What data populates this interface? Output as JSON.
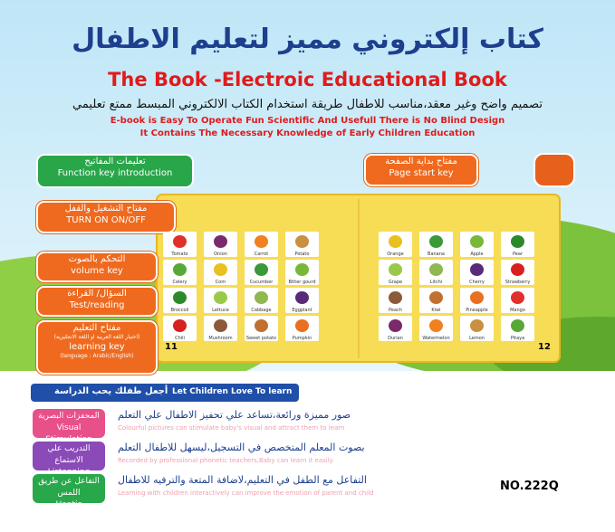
{
  "header": {
    "title_ar": "كتاب إلكتروني مميز لتعليم الاطفال",
    "title_en": "The Book -Electroic Educational Book",
    "subtitle_ar": "تصميم واضح وغير معقد،مناسب للاطفال طريقة استخدام الكتاب الالكتروني المبسط ممتع تعليمي",
    "line1": "E-book is Easy To Operate Fun Scientific And Usefull There is No Blind Design",
    "line2": "It Contains The Necessary Knowledge of Early Children Education"
  },
  "keys": {
    "function": {
      "ar": "تعليمات المفاتيح",
      "en": "Function key introduction"
    },
    "power": {
      "ar": "مفتاح التشغيل والقفل",
      "en": "TURN ON ON/OFF"
    },
    "volume": {
      "ar": "التحكم بالصوت",
      "en": "volume key"
    },
    "test": {
      "ar": "السؤال/ القراءة",
      "en": "Test/reading"
    },
    "learning": {
      "ar": "مفتاح التعليم",
      "note_ar": "(اختيار اللغة العربية او اللغة الانجليزية)",
      "en": "learning key",
      "note_en": "(language : Arabic/English)"
    },
    "page_start": {
      "ar": "مفتاح بداية الصفحة",
      "en": "Page start key"
    }
  },
  "book": {
    "left_page": "11",
    "right_page": "12",
    "left": [
      [
        "Tomato",
        "Onion",
        "Carrot",
        "Potato"
      ],
      [
        "Celery",
        "Corn",
        "Cucumber",
        "Bitter gourd"
      ],
      [
        "Broccoli",
        "Lettuce",
        "Cabbage",
        "Eggplant"
      ],
      [
        "Chili",
        "Mushroom",
        "Sweet potato",
        "Pumpkin"
      ]
    ],
    "right": [
      [
        "Orange",
        "Banana",
        "Apple",
        "Pear"
      ],
      [
        "Grape",
        "Litchi",
        "Cherry",
        "Strawberry"
      ],
      [
        "Peach",
        "Kiwi",
        "Pineapple",
        "Mango"
      ],
      [
        "Durian",
        "Watermelon",
        "Lemon",
        "Pitaya"
      ]
    ]
  },
  "slogan": {
    "ar": "أجعل طفلك يحب الدراسة",
    "en": "Let Children Love To learn"
  },
  "features": [
    {
      "ar": "المحفزات البصرية",
      "en": "Visual Stimulation",
      "desc_ar": "صور مميزة ورائعة،تساعد علي تحفيز الاطفال علي التعلم",
      "desc_en": "Colourful pictures can stimulate baby's visual and attract them to learn"
    },
    {
      "ar": "التدريب علي الاستماع",
      "en": "Listenning Training",
      "desc_ar": "بصوت المعلم المتخصص في التسجيل،ليسهل للاطفال التعلم",
      "desc_en": "Recorded by professional phonetic teachers,Baby can learn it easily"
    },
    {
      "ar": "التفاعل عن طريق اللمس",
      "en": "Haptic Interacting",
      "desc_ar": "التفاعل مع الطفل في التعليم،لاضافة المتعة والترفيه للاطفال",
      "desc_en": "Learning with children interactively can improve the emotion of parent and child"
    }
  ],
  "model": "NO.222Q"
}
